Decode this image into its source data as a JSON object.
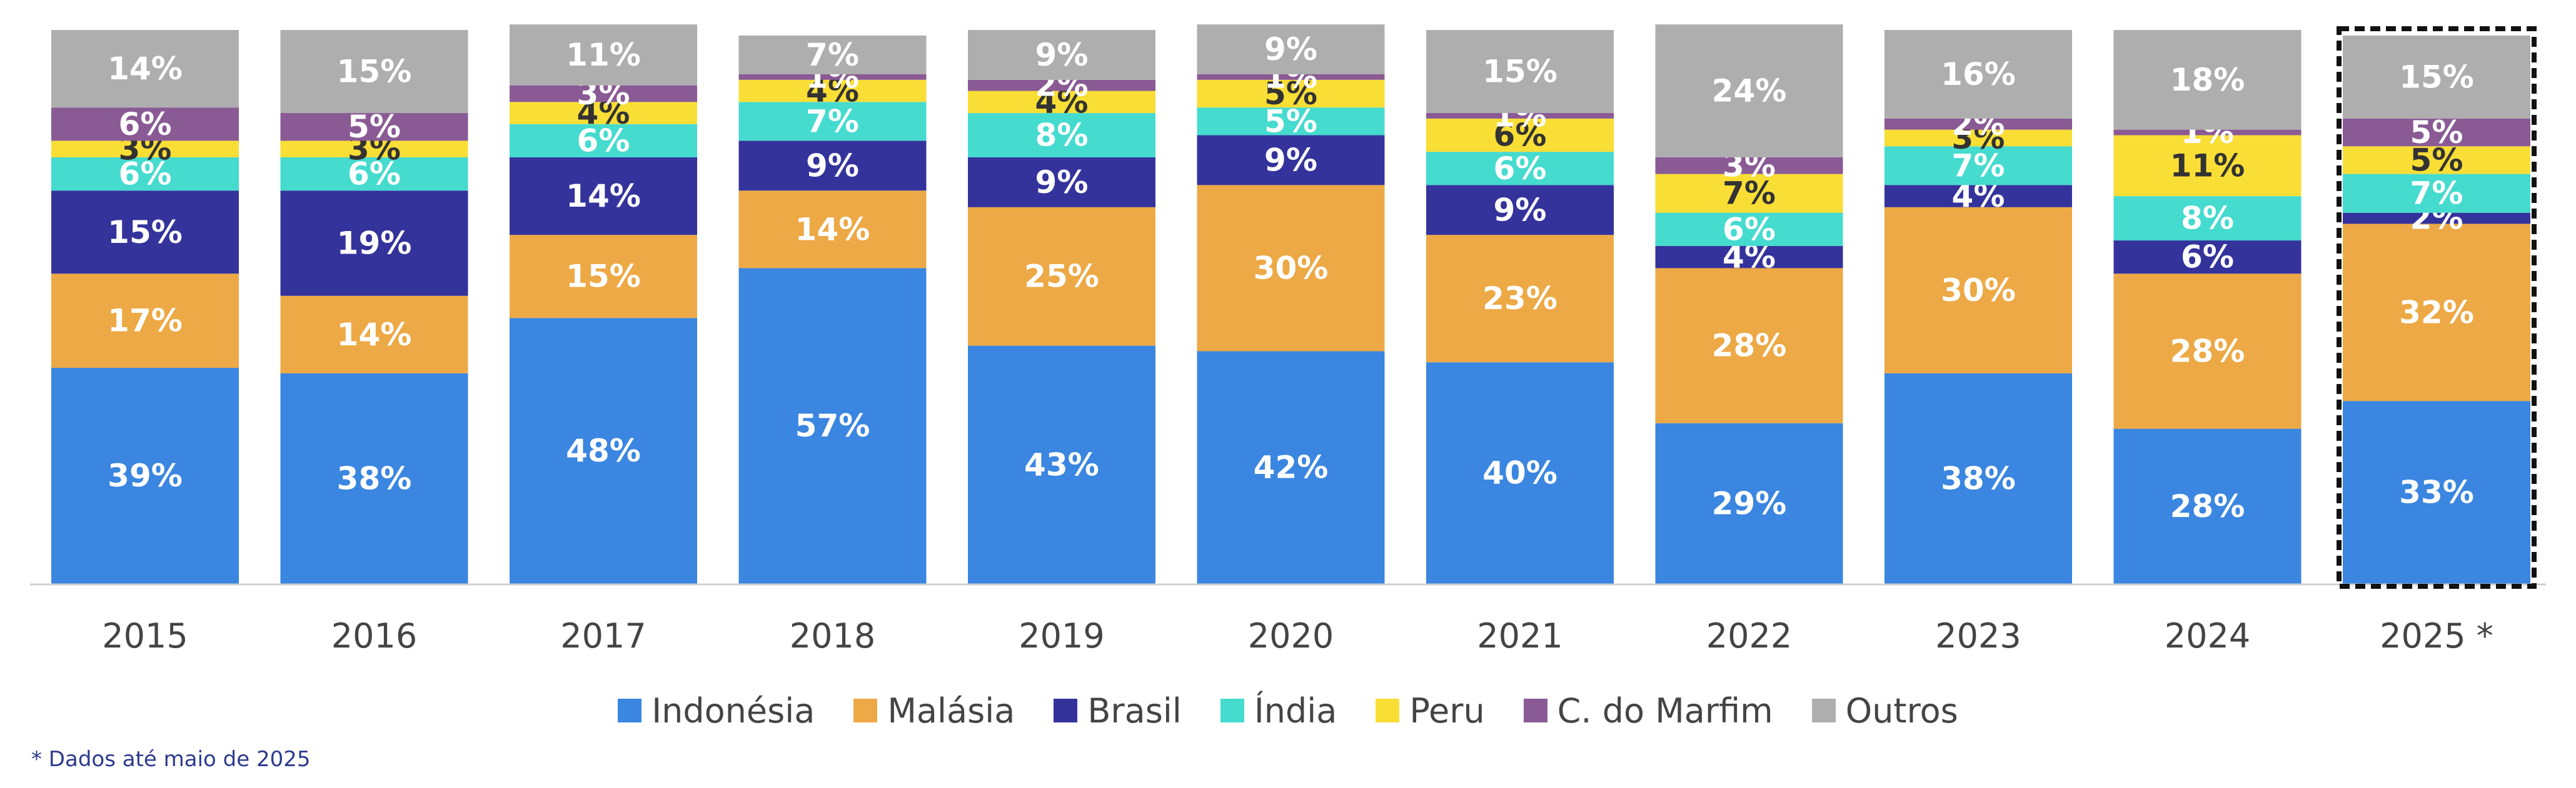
{
  "chart_data": {
    "type": "bar",
    "stacked": true,
    "categories": [
      "2015",
      "2016",
      "2017",
      "2018",
      "2019",
      "2020",
      "2021",
      "2022",
      "2023",
      "2024",
      "2025 *"
    ],
    "highlight_category": "2025 *",
    "ylim": [
      0,
      100
    ],
    "grid": false,
    "legend_position": "bottom",
    "series": [
      {
        "name": "Indonésia",
        "color": "#3A86E0",
        "label_color": "#ffffff",
        "values": [
          39,
          38,
          48,
          57,
          43,
          42,
          40,
          29,
          38,
          28,
          33
        ]
      },
      {
        "name": "Malásia",
        "color": "#EDA945",
        "label_color": "#ffffff",
        "values": [
          17,
          14,
          15,
          14,
          25,
          30,
          23,
          28,
          30,
          28,
          32
        ]
      },
      {
        "name": "Brasil",
        "color": "#34339C",
        "label_color": "#ffffff",
        "values": [
          15,
          19,
          14,
          9,
          9,
          9,
          9,
          4,
          4,
          6,
          2
        ]
      },
      {
        "name": "Índia",
        "color": "#45DBCF",
        "label_color": "#ffffff",
        "values": [
          6,
          6,
          6,
          7,
          8,
          5,
          6,
          6,
          7,
          8,
          7
        ]
      },
      {
        "name": "Peru",
        "color": "#F9DE35",
        "label_color": "#333333",
        "values": [
          3,
          3,
          4,
          4,
          4,
          5,
          6,
          7,
          3,
          11,
          5
        ]
      },
      {
        "name": "C. do Marfim",
        "color": "#8A5A95",
        "label_color": "#ffffff",
        "values": [
          6,
          5,
          3,
          1,
          2,
          1,
          1,
          3,
          2,
          1,
          5
        ]
      },
      {
        "name": "Outros",
        "color": "#AEAEAE",
        "label_color": "#ffffff",
        "values": [
          14,
          15,
          11,
          7,
          9,
          9,
          15,
          24,
          16,
          18,
          15
        ]
      }
    ]
  },
  "footnote": "* Dados até maio de 2025"
}
